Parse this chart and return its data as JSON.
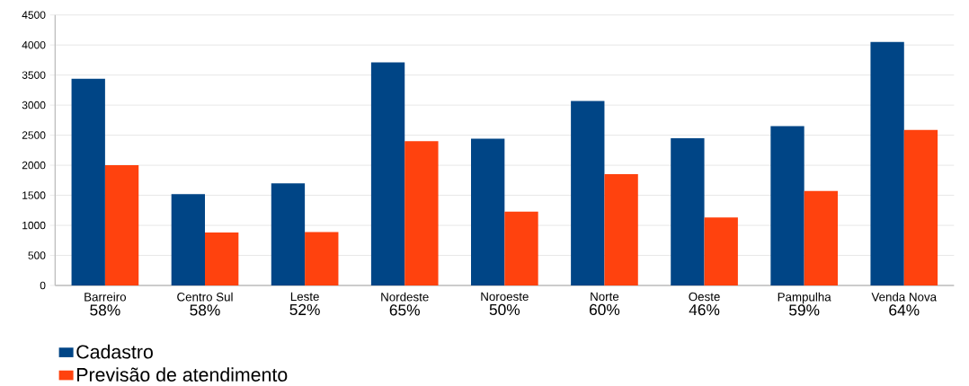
{
  "chart_data": {
    "type": "bar",
    "categories": [
      "Barreiro",
      "Centro Sul",
      "Leste",
      "Nordeste",
      "Noroeste",
      "Norte",
      "Oeste",
      "Pampulha",
      "Venda Nova"
    ],
    "series": [
      {
        "name": "Cadastro",
        "color": "#004586",
        "values": [
          3440,
          1520,
          1700,
          3710,
          2440,
          3070,
          2450,
          2650,
          4050
        ]
      },
      {
        "name": "Previsão de atendimento",
        "color": "#ff420e",
        "values": [
          2000,
          880,
          890,
          2400,
          1230,
          1850,
          1130,
          1570,
          2590
        ]
      }
    ],
    "annotations": [
      "58%",
      "58%",
      "52%",
      "65%",
      "50%",
      "60%",
      "46%",
      "59%",
      "64%"
    ],
    "ylim": [
      0,
      4500
    ],
    "yticks": [
      0,
      500,
      1000,
      1500,
      2000,
      2500,
      3000,
      3500,
      4000,
      4500
    ],
    "grid": "y",
    "legend": "bottom left"
  }
}
